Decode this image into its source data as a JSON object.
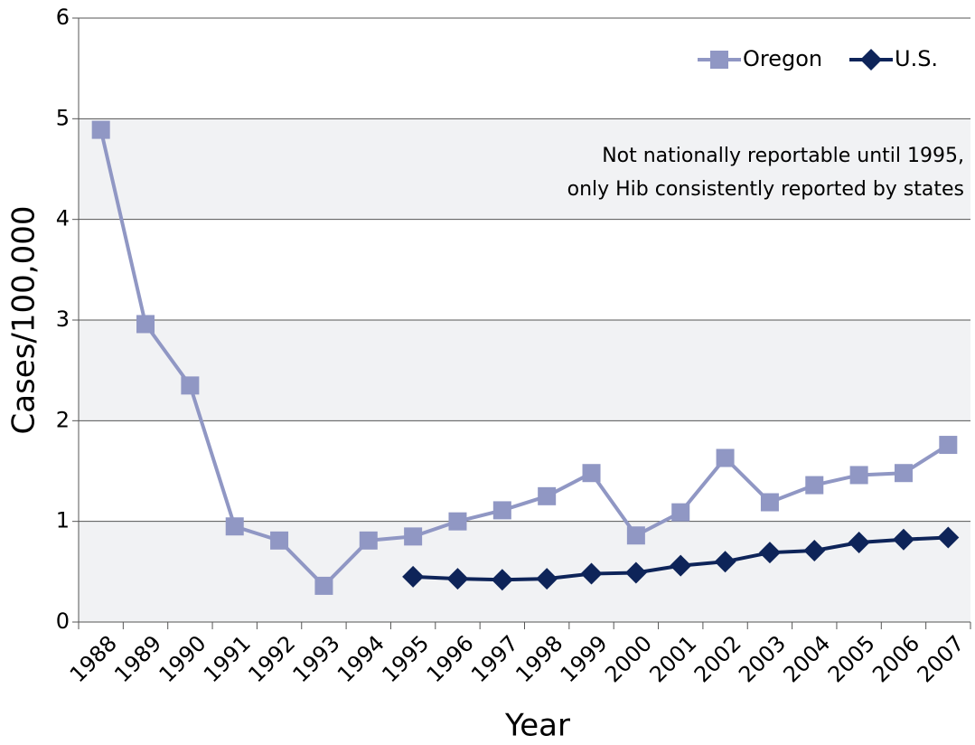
{
  "chart_data": {
    "type": "line",
    "x_label": "Year",
    "y_label": "Cases/100,000",
    "annotation": [
      "Not nationally reportable until 1995,",
      "only Hib consistently reported by states"
    ],
    "categories": [
      "1988",
      "1989",
      "1990",
      "1991",
      "1992",
      "1993",
      "1994",
      "1995",
      "1996",
      "1997",
      "1998",
      "1999",
      "2000",
      "2001",
      "2002",
      "2003",
      "2004",
      "2005",
      "2006",
      "2007"
    ],
    "series": [
      {
        "name": "Oregon",
        "color": "#9097c4",
        "marker": "square",
        "values": [
          4.89,
          2.96,
          2.35,
          0.95,
          0.81,
          0.36,
          0.81,
          0.85,
          1.0,
          1.11,
          1.25,
          1.48,
          0.86,
          1.09,
          1.63,
          1.19,
          1.36,
          1.46,
          1.48,
          1.76
        ]
      },
      {
        "name": "U.S.",
        "color": "#0e2459",
        "marker": "diamond",
        "values": [
          null,
          null,
          null,
          null,
          null,
          null,
          null,
          0.45,
          0.43,
          0.42,
          0.43,
          0.48,
          0.49,
          0.56,
          0.6,
          0.69,
          0.71,
          0.79,
          0.82,
          0.84
        ]
      }
    ],
    "ylim": [
      0,
      6
    ],
    "yticks": [
      0,
      1,
      2,
      3,
      4,
      5,
      6
    ],
    "grid": true,
    "band_shading": true,
    "legend": "top-right"
  }
}
